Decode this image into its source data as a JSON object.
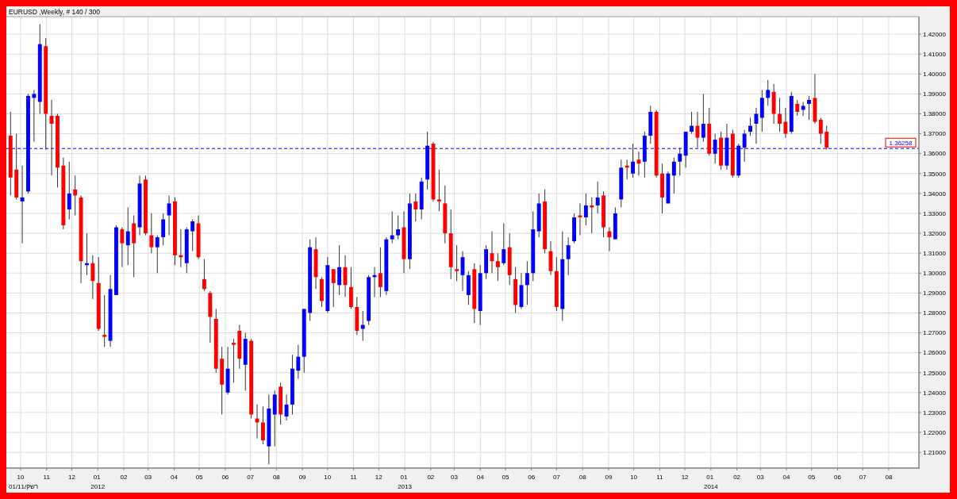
{
  "chart_data": {
    "type": "candlestick",
    "title": "EURUSD ,Weekly, # 140 / 300",
    "x": [
      "2011-09-19",
      "2011-09-26",
      "2011-10-03",
      "2011-10-10",
      "2011-10-17",
      "2011-10-24",
      "2011-10-31",
      "2011-11-07",
      "2011-11-14",
      "2011-11-21",
      "2011-11-28",
      "2011-12-05",
      "2011-12-12",
      "2011-12-19",
      "2011-12-26",
      "2012-01-02",
      "2012-01-09",
      "2012-01-16",
      "2012-01-23",
      "2012-01-30",
      "2012-02-06",
      "2012-02-13",
      "2012-02-20",
      "2012-02-27",
      "2012-03-05",
      "2012-03-12",
      "2012-03-19",
      "2012-03-26",
      "2012-04-02",
      "2012-04-09",
      "2012-04-16",
      "2012-04-23",
      "2012-04-30",
      "2012-05-07",
      "2012-05-14",
      "2012-05-21",
      "2012-05-28",
      "2012-06-04",
      "2012-06-11",
      "2012-06-18",
      "2012-06-25",
      "2012-07-02",
      "2012-07-09",
      "2012-07-16",
      "2012-07-23",
      "2012-07-30",
      "2012-08-06",
      "2012-08-13",
      "2012-08-20",
      "2012-08-27",
      "2012-09-03",
      "2012-09-10",
      "2012-09-17",
      "2012-09-24",
      "2012-10-01",
      "2012-10-08",
      "2012-10-15",
      "2012-10-22",
      "2012-10-29",
      "2012-11-05",
      "2012-11-12",
      "2012-11-19",
      "2012-11-26",
      "2012-12-03",
      "2012-12-10",
      "2012-12-17",
      "2012-12-24",
      "2012-12-31",
      "2013-01-07",
      "2013-01-14",
      "2013-01-21",
      "2013-01-28",
      "2013-02-04",
      "2013-02-11",
      "2013-02-18",
      "2013-02-25",
      "2013-03-04",
      "2013-03-11",
      "2013-03-18",
      "2013-03-25",
      "2013-04-01",
      "2013-04-08",
      "2013-04-15",
      "2013-04-22",
      "2013-04-29",
      "2013-05-06",
      "2013-05-13",
      "2013-05-20",
      "2013-05-27",
      "2013-06-03",
      "2013-06-10",
      "2013-06-17",
      "2013-06-24",
      "2013-07-01",
      "2013-07-08",
      "2013-07-15",
      "2013-07-22",
      "2013-07-29",
      "2013-08-05",
      "2013-08-12",
      "2013-08-19",
      "2013-08-26",
      "2013-09-02",
      "2013-09-09",
      "2013-09-16",
      "2013-09-23",
      "2013-09-30",
      "2013-10-07",
      "2013-10-14",
      "2013-10-21",
      "2013-10-28",
      "2013-11-04",
      "2013-11-11",
      "2013-11-18",
      "2013-11-25",
      "2013-12-02",
      "2013-12-09",
      "2013-12-16",
      "2013-12-23",
      "2013-12-30",
      "2014-01-06",
      "2014-01-13",
      "2014-01-20",
      "2014-01-27",
      "2014-02-03",
      "2014-02-10",
      "2014-02-17",
      "2014-02-24",
      "2014-03-03",
      "2014-03-10",
      "2014-03-17",
      "2014-03-24",
      "2014-03-31",
      "2014-04-07",
      "2014-04-14",
      "2014-04-21",
      "2014-04-28",
      "2014-05-05",
      "2014-05-12",
      "2014-05-19"
    ],
    "ohlc": [
      [
        1.369,
        1.381,
        1.339,
        1.348
      ],
      [
        1.352,
        1.37,
        1.337,
        1.338
      ],
      [
        1.336,
        1.354,
        1.315,
        1.338
      ],
      [
        1.341,
        1.39,
        1.34,
        1.389
      ],
      [
        1.388,
        1.392,
        1.366,
        1.39
      ],
      [
        1.386,
        1.425,
        1.38,
        1.415
      ],
      [
        1.414,
        1.418,
        1.362,
        1.38
      ],
      [
        1.379,
        1.387,
        1.349,
        1.375
      ],
      [
        1.379,
        1.38,
        1.343,
        1.353
      ],
      [
        1.354,
        1.358,
        1.322,
        1.324
      ],
      [
        1.332,
        1.356,
        1.327,
        1.34
      ],
      [
        1.342,
        1.349,
        1.329,
        1.339
      ],
      [
        1.338,
        1.339,
        1.295,
        1.306
      ],
      [
        1.304,
        1.32,
        1.299,
        1.305
      ],
      [
        1.305,
        1.309,
        1.287,
        1.296
      ],
      [
        1.295,
        1.308,
        1.271,
        1.272
      ],
      [
        1.269,
        1.289,
        1.263,
        1.268
      ],
      [
        1.266,
        1.299,
        1.263,
        1.292
      ],
      [
        1.289,
        1.324,
        1.289,
        1.323
      ],
      [
        1.322,
        1.323,
        1.303,
        1.315
      ],
      [
        1.314,
        1.333,
        1.304,
        1.321
      ],
      [
        1.325,
        1.329,
        1.298,
        1.315
      ],
      [
        1.323,
        1.349,
        1.319,
        1.345
      ],
      [
        1.347,
        1.349,
        1.319,
        1.32
      ],
      [
        1.319,
        1.33,
        1.31,
        1.313
      ],
      [
        1.313,
        1.319,
        1.3,
        1.318
      ],
      [
        1.318,
        1.33,
        1.314,
        1.327
      ],
      [
        1.329,
        1.339,
        1.319,
        1.335
      ],
      [
        1.336,
        1.338,
        1.304,
        1.309
      ],
      [
        1.309,
        1.322,
        1.303,
        1.308
      ],
      [
        1.305,
        1.323,
        1.3,
        1.322
      ],
      [
        1.321,
        1.327,
        1.311,
        1.326
      ],
      [
        1.325,
        1.329,
        1.307,
        1.308
      ],
      [
        1.297,
        1.307,
        1.291,
        1.292
      ],
      [
        1.29,
        1.291,
        1.265,
        1.278
      ],
      [
        1.277,
        1.282,
        1.25,
        1.252
      ],
      [
        1.257,
        1.263,
        1.229,
        1.244
      ],
      [
        1.24,
        1.263,
        1.239,
        1.252
      ],
      [
        1.265,
        1.267,
        1.245,
        1.264
      ],
      [
        1.271,
        1.274,
        1.252,
        1.257
      ],
      [
        1.254,
        1.27,
        1.241,
        1.267
      ],
      [
        1.266,
        1.267,
        1.227,
        1.229
      ],
      [
        1.227,
        1.234,
        1.217,
        1.225
      ],
      [
        1.225,
        1.233,
        1.214,
        1.216
      ],
      [
        1.213,
        1.239,
        1.204,
        1.232
      ],
      [
        1.229,
        1.241,
        1.213,
        1.239
      ],
      [
        1.243,
        1.245,
        1.224,
        1.229
      ],
      [
        1.228,
        1.239,
        1.226,
        1.234
      ],
      [
        1.234,
        1.259,
        1.229,
        1.252
      ],
      [
        1.251,
        1.264,
        1.247,
        1.258
      ],
      [
        1.258,
        1.282,
        1.25,
        1.282
      ],
      [
        1.28,
        1.317,
        1.276,
        1.313
      ],
      [
        1.312,
        1.318,
        1.292,
        1.298
      ],
      [
        1.297,
        1.298,
        1.283,
        1.286
      ],
      [
        1.281,
        1.308,
        1.28,
        1.304
      ],
      [
        1.302,
        1.302,
        1.283,
        1.295
      ],
      [
        1.294,
        1.314,
        1.289,
        1.303
      ],
      [
        1.303,
        1.309,
        1.288,
        1.294
      ],
      [
        1.293,
        1.303,
        1.282,
        1.283
      ],
      [
        1.283,
        1.288,
        1.269,
        1.271
      ],
      [
        1.272,
        1.281,
        1.266,
        1.274
      ],
      [
        1.276,
        1.299,
        1.274,
        1.298
      ],
      [
        1.298,
        1.303,
        1.288,
        1.299
      ],
      [
        1.3,
        1.313,
        1.288,
        1.293
      ],
      [
        1.291,
        1.318,
        1.289,
        1.317
      ],
      [
        1.317,
        1.331,
        1.315,
        1.319
      ],
      [
        1.319,
        1.329,
        1.317,
        1.322
      ],
      [
        1.323,
        1.331,
        1.3,
        1.307
      ],
      [
        1.307,
        1.34,
        1.302,
        1.335
      ],
      [
        1.336,
        1.34,
        1.326,
        1.332
      ],
      [
        1.332,
        1.348,
        1.327,
        1.346
      ],
      [
        1.347,
        1.371,
        1.342,
        1.364
      ],
      [
        1.365,
        1.366,
        1.336,
        1.337
      ],
      [
        1.337,
        1.352,
        1.331,
        1.336
      ],
      [
        1.335,
        1.344,
        1.315,
        1.32
      ],
      [
        1.32,
        1.332,
        1.297,
        1.303
      ],
      [
        1.302,
        1.314,
        1.296,
        1.301
      ],
      [
        1.299,
        1.311,
        1.291,
        1.308
      ],
      [
        1.289,
        1.301,
        1.284,
        1.299
      ],
      [
        1.302,
        1.305,
        1.275,
        1.282
      ],
      [
        1.281,
        1.304,
        1.274,
        1.3
      ],
      [
        1.3,
        1.314,
        1.297,
        1.312
      ],
      [
        1.31,
        1.321,
        1.3,
        1.306
      ],
      [
        1.306,
        1.31,
        1.296,
        1.303
      ],
      [
        1.305,
        1.325,
        1.304,
        1.312
      ],
      [
        1.313,
        1.32,
        1.294,
        1.299
      ],
      [
        1.297,
        1.303,
        1.28,
        1.284
      ],
      [
        1.283,
        1.3,
        1.282,
        1.294
      ],
      [
        1.294,
        1.306,
        1.284,
        1.3
      ],
      [
        1.3,
        1.331,
        1.296,
        1.322
      ],
      [
        1.321,
        1.34,
        1.318,
        1.335
      ],
      [
        1.336,
        1.342,
        1.31,
        1.312
      ],
      [
        1.311,
        1.316,
        1.299,
        1.301
      ],
      [
        1.301,
        1.308,
        1.281,
        1.283
      ],
      [
        1.282,
        1.321,
        1.276,
        1.307
      ],
      [
        1.307,
        1.318,
        1.299,
        1.314
      ],
      [
        1.316,
        1.33,
        1.315,
        1.328
      ],
      [
        1.329,
        1.335,
        1.319,
        1.328
      ],
      [
        1.328,
        1.34,
        1.324,
        1.334
      ],
      [
        1.334,
        1.338,
        1.32,
        1.333
      ],
      [
        1.334,
        1.346,
        1.33,
        1.338
      ],
      [
        1.339,
        1.341,
        1.318,
        1.323
      ],
      [
        1.321,
        1.323,
        1.311,
        1.318
      ],
      [
        1.317,
        1.333,
        1.317,
        1.33
      ],
      [
        1.337,
        1.357,
        1.333,
        1.353
      ],
      [
        1.354,
        1.357,
        1.347,
        1.353
      ],
      [
        1.35,
        1.365,
        1.348,
        1.356
      ],
      [
        1.357,
        1.361,
        1.349,
        1.355
      ],
      [
        1.356,
        1.371,
        1.348,
        1.369
      ],
      [
        1.369,
        1.384,
        1.365,
        1.381
      ],
      [
        1.381,
        1.382,
        1.348,
        1.349
      ],
      [
        1.35,
        1.355,
        1.33,
        1.338
      ],
      [
        1.335,
        1.351,
        1.335,
        1.35
      ],
      [
        1.349,
        1.358,
        1.34,
        1.356
      ],
      [
        1.356,
        1.363,
        1.349,
        1.36
      ],
      [
        1.359,
        1.371,
        1.353,
        1.371
      ],
      [
        1.371,
        1.381,
        1.37,
        1.374
      ],
      [
        1.374,
        1.381,
        1.363,
        1.368
      ],
      [
        1.368,
        1.39,
        1.366,
        1.375
      ],
      [
        1.375,
        1.383,
        1.359,
        1.36
      ],
      [
        1.36,
        1.37,
        1.355,
        1.367
      ],
      [
        1.368,
        1.371,
        1.352,
        1.354
      ],
      [
        1.354,
        1.375,
        1.352,
        1.368
      ],
      [
        1.37,
        1.372,
        1.348,
        1.349
      ],
      [
        1.349,
        1.365,
        1.348,
        1.364
      ],
      [
        1.363,
        1.372,
        1.356,
        1.37
      ],
      [
        1.371,
        1.378,
        1.369,
        1.374
      ],
      [
        1.375,
        1.383,
        1.365,
        1.38
      ],
      [
        1.378,
        1.392,
        1.371,
        1.388
      ],
      [
        1.388,
        1.397,
        1.384,
        1.392
      ],
      [
        1.391,
        1.395,
        1.375,
        1.38
      ],
      [
        1.38,
        1.388,
        1.371,
        1.375
      ],
      [
        1.376,
        1.383,
        1.368,
        1.37
      ],
      [
        1.371,
        1.391,
        1.37,
        1.389
      ],
      [
        1.385,
        1.387,
        1.379,
        1.381
      ],
      [
        1.382,
        1.386,
        1.379,
        1.384
      ],
      [
        1.385,
        1.389,
        1.377,
        1.387
      ],
      [
        1.388,
        1.4,
        1.375,
        1.376
      ],
      [
        1.377,
        1.378,
        1.365,
        1.37
      ],
      [
        1.371,
        1.374,
        1.362,
        1.363
      ]
    ],
    "colors": [
      "#ff0000",
      "#ff0000",
      "#0000ff",
      "#0000ff",
      "#0000ff",
      "#0000ff",
      "#ff0000",
      "#ff0000",
      "#ff0000",
      "#ff0000",
      "#0000ff",
      "#ff0000",
      "#ff0000",
      "#0000ff",
      "#ff0000",
      "#ff0000",
      "#ff0000",
      "#0000ff",
      "#0000ff",
      "#ff0000",
      "#0000ff",
      "#ff0000",
      "#0000ff",
      "#ff0000",
      "#ff0000",
      "#0000ff",
      "#0000ff",
      "#0000ff",
      "#ff0000",
      "#ff0000",
      "#0000ff",
      "#0000ff",
      "#ff0000",
      "#ff0000",
      "#ff0000",
      "#ff0000",
      "#ff0000",
      "#0000ff",
      "#ff0000",
      "#ff0000",
      "#0000ff",
      "#ff0000",
      "#ff0000",
      "#ff0000",
      "#0000ff",
      "#0000ff",
      "#ff0000",
      "#0000ff",
      "#0000ff",
      "#0000ff",
      "#0000ff",
      "#0000ff",
      "#ff0000",
      "#ff0000",
      "#0000ff",
      "#ff0000",
      "#0000ff",
      "#ff0000",
      "#ff0000",
      "#ff0000",
      "#0000ff",
      "#0000ff",
      "#0000ff",
      "#ff0000",
      "#0000ff",
      "#0000ff",
      "#0000ff",
      "#ff0000",
      "#0000ff",
      "#ff0000",
      "#0000ff",
      "#0000ff",
      "#ff0000",
      "#ff0000",
      "#ff0000",
      "#ff0000",
      "#ff0000",
      "#0000ff",
      "#0000ff",
      "#ff0000",
      "#0000ff",
      "#0000ff",
      "#ff0000",
      "#ff0000",
      "#0000ff",
      "#ff0000",
      "#ff0000",
      "#0000ff",
      "#0000ff",
      "#0000ff",
      "#0000ff",
      "#ff0000",
      "#ff0000",
      "#ff0000",
      "#0000ff",
      "#0000ff",
      "#0000ff",
      "#ff0000",
      "#0000ff",
      "#ff0000",
      "#0000ff",
      "#ff0000",
      "#ff0000",
      "#0000ff",
      "#0000ff",
      "#ff0000",
      "#0000ff",
      "#ff0000",
      "#0000ff",
      "#0000ff",
      "#ff0000",
      "#ff0000",
      "#0000ff",
      "#0000ff",
      "#0000ff",
      "#0000ff",
      "#0000ff",
      "#ff0000",
      "#0000ff",
      "#ff0000",
      "#0000ff",
      "#ff0000",
      "#0000ff",
      "#ff0000",
      "#0000ff",
      "#0000ff",
      "#0000ff",
      "#0000ff",
      "#0000ff",
      "#0000ff",
      "#ff0000",
      "#ff0000",
      "#ff0000",
      "#0000ff",
      "#ff0000",
      "#0000ff",
      "#0000ff",
      "#ff0000",
      "#ff0000",
      "#ff0000"
    ],
    "xlim": [
      "2011-09-14",
      "2014-09-06"
    ],
    "xticks": [
      {
        "value": "2011-10-01",
        "label": "10"
      },
      {
        "value": "2011-11-01",
        "label": "11"
      },
      {
        "value": "2011-12-01",
        "label": "12"
      },
      {
        "value": "2012-01-01",
        "label": "01\n2012"
      },
      {
        "value": "2012-02-01",
        "label": "02"
      },
      {
        "value": "2012-03-01",
        "label": "03"
      },
      {
        "value": "2012-04-01",
        "label": "04"
      },
      {
        "value": "2012-05-01",
        "label": "05"
      },
      {
        "value": "2012-06-01",
        "label": "06"
      },
      {
        "value": "2012-07-01",
        "label": "07"
      },
      {
        "value": "2012-08-01",
        "label": "08"
      },
      {
        "value": "2012-09-01",
        "label": "09"
      },
      {
        "value": "2012-10-01",
        "label": "10"
      },
      {
        "value": "2012-11-01",
        "label": "11"
      },
      {
        "value": "2012-12-01",
        "label": "12"
      },
      {
        "value": "2013-01-01",
        "label": "01\n2013"
      },
      {
        "value": "2013-02-01",
        "label": "02"
      },
      {
        "value": "2013-03-01",
        "label": "03"
      },
      {
        "value": "2013-04-01",
        "label": "04"
      },
      {
        "value": "2013-05-01",
        "label": "05"
      },
      {
        "value": "2013-06-01",
        "label": "06"
      },
      {
        "value": "2013-07-01",
        "label": "07"
      },
      {
        "value": "2013-08-01",
        "label": "08"
      },
      {
        "value": "2013-09-01",
        "label": "09"
      },
      {
        "value": "2013-10-01",
        "label": "10"
      },
      {
        "value": "2013-11-01",
        "label": "11"
      },
      {
        "value": "2013-12-01",
        "label": "12"
      },
      {
        "value": "2014-01-01",
        "label": "01\n2014"
      },
      {
        "value": "2014-02-01",
        "label": "02"
      },
      {
        "value": "2014-03-01",
        "label": "03"
      },
      {
        "value": "2014-04-01",
        "label": "04"
      },
      {
        "value": "2014-05-01",
        "label": "05"
      },
      {
        "value": "2014-06-01",
        "label": "06"
      },
      {
        "value": "2014-07-01",
        "label": "07"
      },
      {
        "value": "2014-08-01",
        "label": "08"
      }
    ],
    "ylim": [
      1.2021,
      1.4288
    ],
    "yticks": [
      {
        "value": 1.21,
        "label": "1.21000"
      },
      {
        "value": 1.22,
        "label": "1.22000"
      },
      {
        "value": 1.23,
        "label": "1.23000"
      },
      {
        "value": 1.24,
        "label": "1.24000"
      },
      {
        "value": 1.25,
        "label": "1.25000"
      },
      {
        "value": 1.26,
        "label": "1.26000"
      },
      {
        "value": 1.27,
        "label": "1.27000"
      },
      {
        "value": 1.28,
        "label": "1.28000"
      },
      {
        "value": 1.29,
        "label": "1.29000"
      },
      {
        "value": 1.3,
        "label": "1.30000"
      },
      {
        "value": 1.31,
        "label": "1.31000"
      },
      {
        "value": 1.32,
        "label": "1.32000"
      },
      {
        "value": 1.33,
        "label": "1.33000"
      },
      {
        "value": 1.34,
        "label": "1.34000"
      },
      {
        "value": 1.35,
        "label": "1.35000"
      },
      {
        "value": 1.36,
        "label": "1.36000"
      },
      {
        "value": 1.37,
        "label": "1.37000"
      },
      {
        "value": 1.38,
        "label": "1.38000"
      },
      {
        "value": 1.39,
        "label": "1.39000"
      },
      {
        "value": 1.4,
        "label": "1.40000"
      },
      {
        "value": 1.41,
        "label": "1.41000"
      },
      {
        "value": 1.42,
        "label": "1.42000"
      }
    ],
    "grid": true,
    "ref_lines": [
      {
        "axis": "y",
        "value": 1.36258,
        "label": "1.36258",
        "color": "#0000ff",
        "line_style": "dashed"
      }
    ],
    "annotations": [
      "01/11/קשר"
    ]
  }
}
